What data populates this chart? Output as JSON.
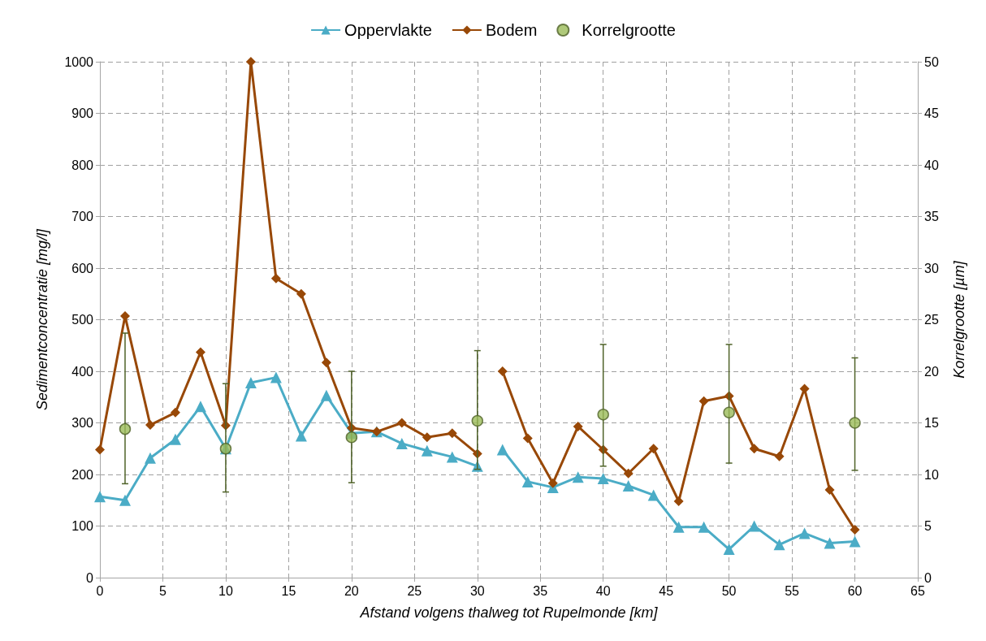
{
  "chart_data": {
    "type": "line",
    "xlabel": "Afstand volgens thalweg tot Rupelmonde [km]",
    "ylabel": "Sedimentconcentratie [mg/l]",
    "y2label": "Korrelgrootte [µm]",
    "x": [
      0,
      2,
      4,
      6,
      8,
      10,
      12,
      14,
      16,
      18,
      20,
      22,
      24,
      26,
      28,
      30,
      31,
      32,
      34,
      36,
      38,
      40,
      42,
      44,
      46,
      48,
      50,
      52,
      54,
      56,
      58,
      60
    ],
    "series": [
      {
        "name": "Oppervlakte",
        "type": "line",
        "color": "#4bacc6",
        "marker": "triangle",
        "values": [
          157,
          150,
          232,
          268,
          332,
          250,
          378,
          388,
          275,
          353,
          280,
          283,
          260,
          246,
          234,
          216,
          null,
          248,
          186,
          175,
          195,
          192,
          178,
          160,
          98,
          98,
          55,
          100,
          64,
          86,
          67,
          70
        ]
      },
      {
        "name": "Bodem",
        "type": "line",
        "color": "#984807",
        "marker": "diamond",
        "values": [
          248,
          507,
          296,
          320,
          437,
          295,
          1000,
          580,
          550,
          417,
          290,
          283,
          300,
          272,
          280,
          240,
          null,
          400,
          270,
          183,
          293,
          248,
          202,
          250,
          148,
          342,
          352,
          250,
          235,
          366,
          170,
          93
        ]
      },
      {
        "name": "Korrelgrootte",
        "type": "scatter",
        "axis": "y2",
        "color": "#9bbb59",
        "marker": "circle",
        "x": [
          2,
          10,
          20,
          30,
          40,
          50,
          60
        ],
        "values": [
          14.4,
          12.5,
          13.6,
          15.2,
          15.8,
          16,
          15
        ],
        "errors": [
          [
            9.1,
            23.7
          ],
          [
            8.3,
            18.8
          ],
          [
            9.2,
            20
          ],
          [
            10.5,
            22
          ],
          [
            10.8,
            22.6
          ],
          [
            11.1,
            22.6
          ],
          [
            10.4,
            21.3
          ]
        ]
      }
    ],
    "xlim": [
      0,
      65
    ],
    "xticks": [
      0,
      5,
      10,
      15,
      20,
      25,
      30,
      35,
      40,
      45,
      50,
      55,
      60,
      65
    ],
    "ylim": [
      0,
      1000
    ],
    "yticks": [
      0,
      100,
      200,
      300,
      400,
      500,
      600,
      700,
      800,
      900,
      1000
    ],
    "y2lim": [
      0,
      50
    ],
    "y2ticks": [
      0,
      5,
      10,
      15,
      20,
      25,
      30,
      35,
      40,
      45,
      50
    ],
    "grid": true,
    "legend": "top"
  }
}
